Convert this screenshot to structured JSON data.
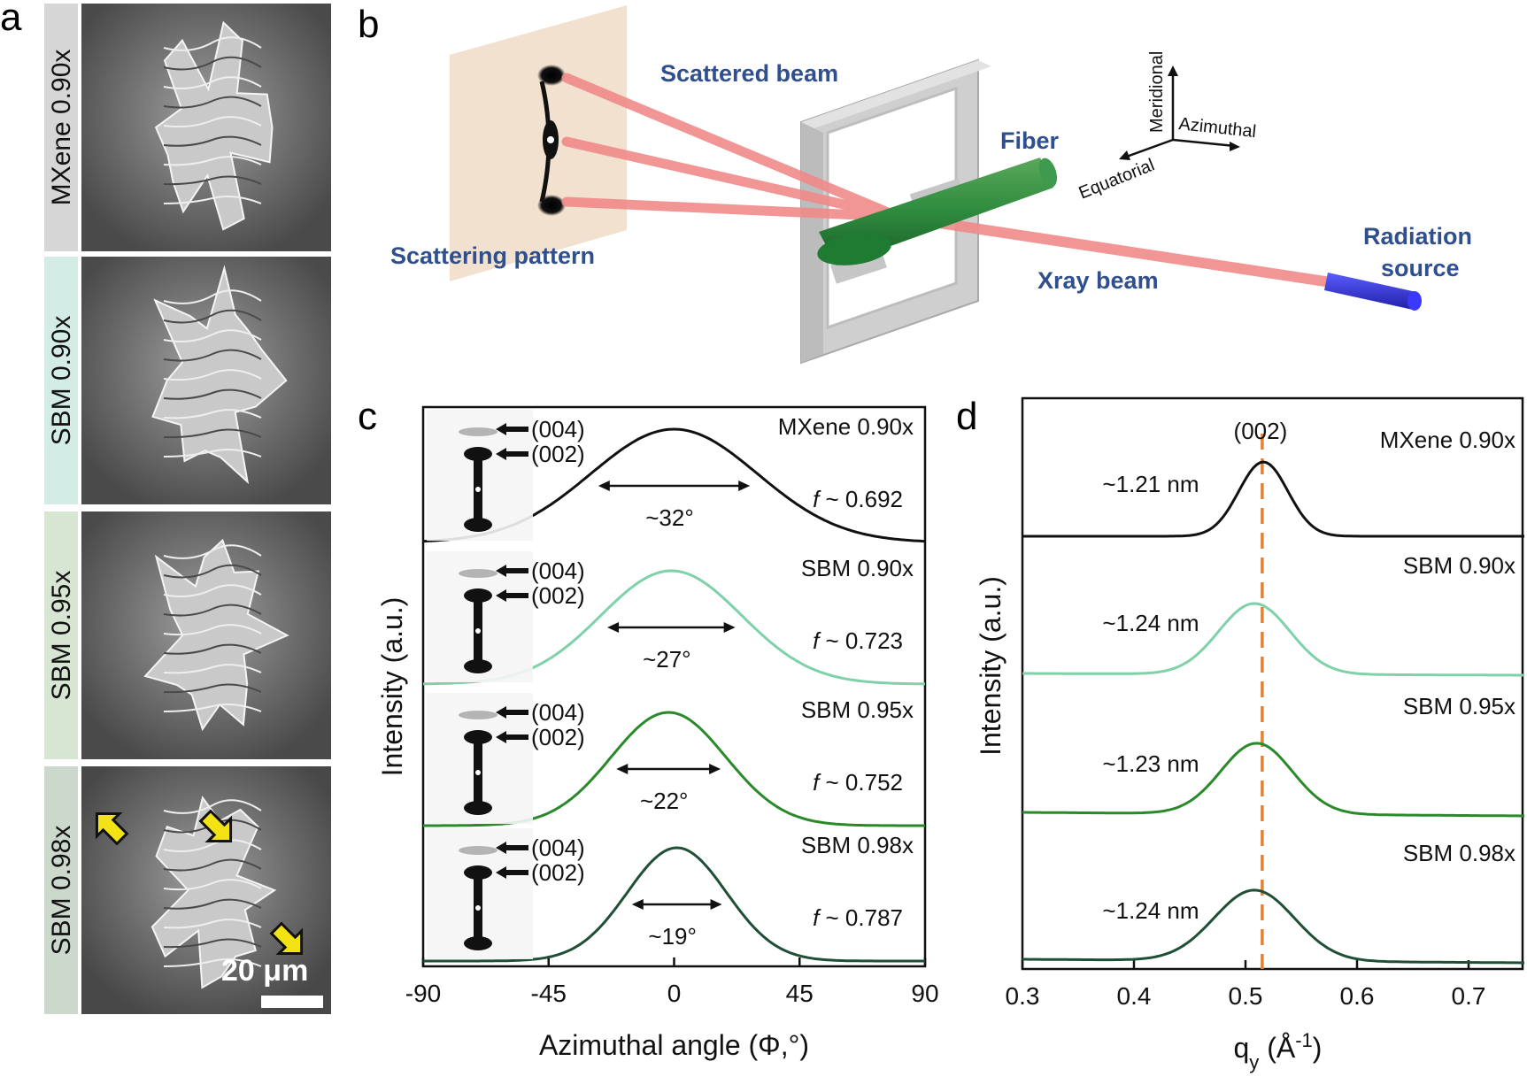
{
  "panel_letters": {
    "a": "a",
    "b": "b",
    "c": "c",
    "d": "d"
  },
  "panel_a": {
    "samples": [
      "MXene 0.90x",
      "SBM 0.90x",
      "SBM 0.95x",
      "SBM 0.98x"
    ],
    "label_colors": [
      "#d6d6d6",
      "#d4ece6",
      "#d6e6d2",
      "#ccd8cc"
    ],
    "scale_bar": "20 μm"
  },
  "panel_b": {
    "scattered_beam": "Scattered beam",
    "scattering_pattern": "Scattering pattern",
    "fiber": "Fiber",
    "xray_beam": "Xray beam",
    "radiation_source_1": "Radiation",
    "radiation_source_2": "source",
    "axes": {
      "meridional": "Meridional",
      "azimuthal": "Azimuthal",
      "equatorial": "Equatorial"
    }
  },
  "chart_data": [
    {
      "type": "line",
      "panel": "c",
      "xlabel": "Azimuthal angle (Φ,°)",
      "ylabel": "Intensity (a.u.)",
      "xlim": [
        -90,
        90
      ],
      "xticks": [
        "-90",
        "-45",
        "0",
        "45",
        "90"
      ],
      "xtick_values": [
        -90,
        -45,
        0,
        45,
        90
      ],
      "series": [
        {
          "name": "MXene 0.90x",
          "color": "#111111",
          "center": 0,
          "fwhm_label": "~32°",
          "f_label": "f ~ 0.692",
          "fwhm": 32
        },
        {
          "name": "SBM 0.90x",
          "color": "#7fd1a9",
          "center": -1,
          "fwhm_label": "~27°",
          "f_label": "f ~ 0.723",
          "fwhm": 27
        },
        {
          "name": "SBM 0.95x",
          "color": "#2a8a2a",
          "center": -2,
          "fwhm_label": "~22°",
          "f_label": "f ~ 0.752",
          "fwhm": 22
        },
        {
          "name": "SBM 0.98x",
          "color": "#1f4f36",
          "center": 1,
          "fwhm_label": "~19°",
          "f_label": "f ~ 0.787",
          "fwhm": 19
        }
      ],
      "inset_labels": [
        "(004)",
        "(002)"
      ]
    },
    {
      "type": "line",
      "panel": "d",
      "xlabel": "q",
      "xlabel_sub": "y",
      "xlabel_unit": " (Å",
      "xlabel_sup": "-1",
      "xlabel_end": ")",
      "ylabel": "Intensity (a.u.)",
      "xlim": [
        0.3,
        0.75
      ],
      "xticks": [
        "0.3",
        "0.4",
        "0.5",
        "0.6",
        "0.7"
      ],
      "xtick_values": [
        0.3,
        0.4,
        0.5,
        0.6,
        0.7
      ],
      "reference_line": {
        "x": 0.515,
        "label": "(002)",
        "color": "#e0843a"
      },
      "series": [
        {
          "name": "MXene 0.90x",
          "color": "#111111",
          "peak": 0.516,
          "spacing_label": "~1.21 nm"
        },
        {
          "name": "SBM 0.90x",
          "color": "#7fd1a9",
          "peak": 0.508,
          "spacing_label": "~1.24 nm"
        },
        {
          "name": "SBM 0.95x",
          "color": "#2a8a2a",
          "peak": 0.51,
          "spacing_label": "~1.23 nm"
        },
        {
          "name": "SBM 0.98x",
          "color": "#1f4f36",
          "peak": 0.508,
          "spacing_label": "~1.24 nm"
        }
      ]
    }
  ]
}
